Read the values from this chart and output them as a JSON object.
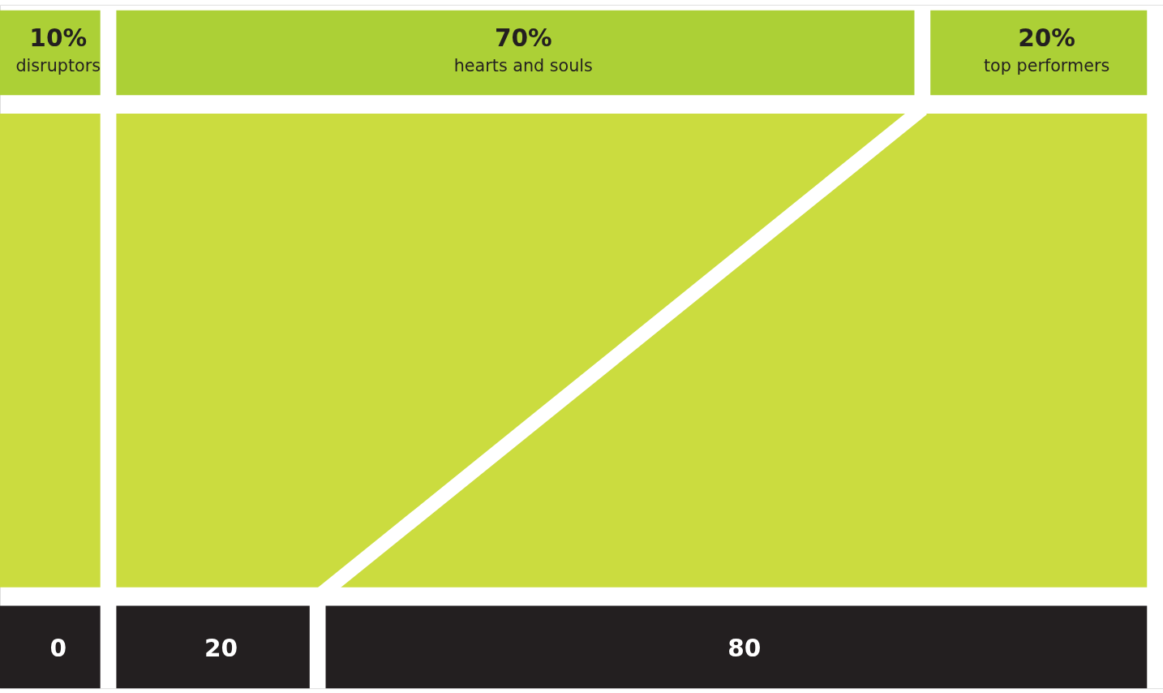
{
  "chart_data": [
    {
      "type": "other",
      "categories": [
        "disruptors",
        "hearts and souls",
        "top performers"
      ],
      "series": [
        {
          "values": [
            10,
            70,
            20
          ],
          "value_labels": [
            "10%",
            "70%",
            "20%"
          ],
          "color": "#acd036"
        }
      ]
    },
    {
      "type": "other",
      "categories": [
        null,
        null,
        null
      ],
      "data_labels": true,
      "series": [
        {
          "values": [
            0,
            20,
            80
          ],
          "color": "#231f20"
        }
      ]
    }
  ]
}
